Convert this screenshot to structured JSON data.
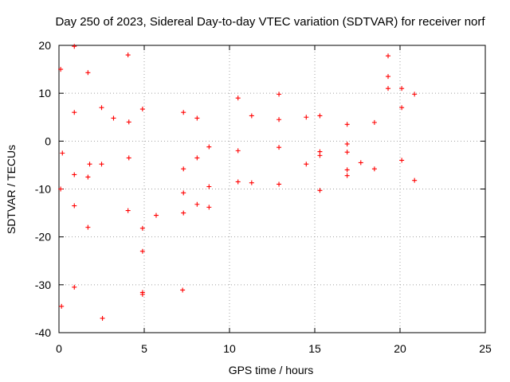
{
  "chart_data": {
    "type": "scatter",
    "title": "Day 250 of 2023, Sidereal Day-to-day VTEC variation (SDTVAR) for receiver norf",
    "xlabel": "GPS time / hours",
    "ylabel": "SDTVAR / TECUs",
    "xlim": [
      0,
      25
    ],
    "ylim": [
      -40,
      20
    ],
    "xticks": [
      "0",
      "5",
      "10",
      "15",
      "20",
      "25"
    ],
    "yticks": [
      "-40",
      "-30",
      "-20",
      "-10",
      "0",
      "10",
      "20"
    ],
    "grid": true,
    "marker": "plus",
    "color": "#ff0000",
    "series": [
      {
        "name": "SDTVAR",
        "points": [
          [
            0.1,
            15
          ],
          [
            0.15,
            -34.5
          ],
          [
            0.1,
            -10
          ],
          [
            0.2,
            -2.5
          ],
          [
            0.9,
            19.8
          ],
          [
            0.9,
            6
          ],
          [
            0.9,
            -7
          ],
          [
            0.9,
            -13.5
          ],
          [
            0.9,
            -30.5
          ],
          [
            1.7,
            14.3
          ],
          [
            1.7,
            -7.5
          ],
          [
            1.7,
            -18
          ],
          [
            1.8,
            -4.8
          ],
          [
            2.5,
            7
          ],
          [
            2.5,
            -4.8
          ],
          [
            2.55,
            -37
          ],
          [
            3.2,
            4.8
          ],
          [
            4.05,
            18
          ],
          [
            4.05,
            -14.5
          ],
          [
            4.1,
            4
          ],
          [
            4.1,
            -3.5
          ],
          [
            4.9,
            6.7
          ],
          [
            4.9,
            -18.2
          ],
          [
            4.9,
            -23
          ],
          [
            4.9,
            -31.6
          ],
          [
            4.9,
            -32
          ],
          [
            5.7,
            -15.5
          ],
          [
            7.3,
            6
          ],
          [
            7.3,
            -5.8
          ],
          [
            7.3,
            -10.8
          ],
          [
            7.3,
            -15
          ],
          [
            7.25,
            -31.1
          ],
          [
            8.1,
            4.8
          ],
          [
            8.1,
            -3.5
          ],
          [
            8.1,
            -13.2
          ],
          [
            8.8,
            -1.2
          ],
          [
            8.8,
            -9.5
          ],
          [
            8.8,
            -13.8
          ],
          [
            10.5,
            9
          ],
          [
            10.5,
            -2
          ],
          [
            10.5,
            -8.5
          ],
          [
            11.3,
            5.3
          ],
          [
            11.3,
            -8.7
          ],
          [
            12.9,
            9.8
          ],
          [
            12.9,
            4.5
          ],
          [
            12.9,
            -1.3
          ],
          [
            12.9,
            -9
          ],
          [
            14.5,
            5
          ],
          [
            14.5,
            -4.8
          ],
          [
            15.3,
            5.3
          ],
          [
            15.3,
            -2.2
          ],
          [
            15.3,
            -3
          ],
          [
            15.3,
            -10.3
          ],
          [
            16.9,
            3.5
          ],
          [
            16.9,
            -0.6
          ],
          [
            16.9,
            -2.3
          ],
          [
            16.9,
            -6
          ],
          [
            16.9,
            -7.2
          ],
          [
            17.7,
            -4.5
          ],
          [
            18.5,
            3.9
          ],
          [
            18.5,
            -5.8
          ],
          [
            19.3,
            17.8
          ],
          [
            19.3,
            13.5
          ],
          [
            19.3,
            11
          ],
          [
            20.1,
            11
          ],
          [
            20.1,
            7
          ],
          [
            20.1,
            -4
          ],
          [
            20.85,
            9.8
          ],
          [
            20.85,
            -8.2
          ]
        ]
      }
    ]
  }
}
